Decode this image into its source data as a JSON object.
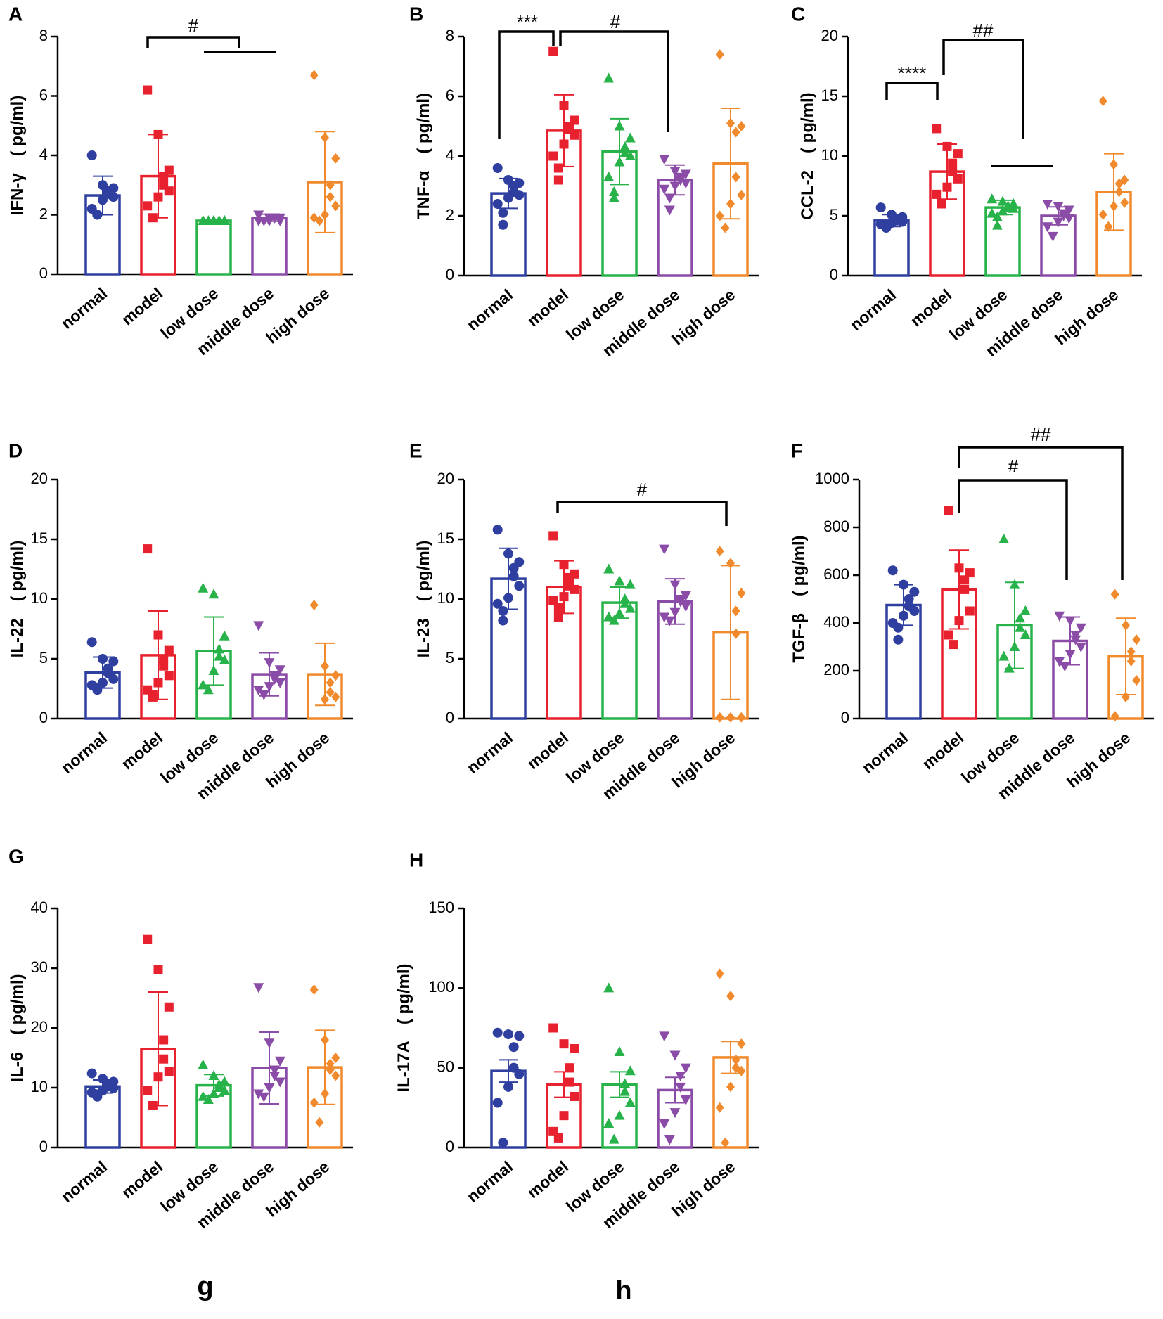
{
  "figure": {
    "captions": [
      "g",
      "h"
    ]
  },
  "colors": {
    "normal": "#2f3fa0",
    "model": "#e8212e",
    "low dose": "#27b34a",
    "middle dose": "#8a4ca6",
    "high dose": "#f08a2c"
  },
  "chart_data": [
    {
      "panel": "A",
      "type": "bar",
      "ylabel": "IFN-γ　( pg/ml)",
      "ylim": [
        0,
        8
      ],
      "yticks": [
        0,
        2,
        4,
        6,
        8
      ],
      "categories": [
        "normal",
        "model",
        "low dose",
        "middle dose",
        "high dose"
      ],
      "markers": [
        "circle",
        "square",
        "triangle-up",
        "triangle-down",
        "diamond"
      ],
      "means": [
        2.65,
        3.3,
        1.8,
        1.9,
        3.1
      ],
      "sd": [
        0.65,
        1.4,
        0.02,
        0.12,
        1.7
      ],
      "points": [
        [
          4.0,
          3.0,
          2.9,
          2.8,
          2.7,
          2.6,
          2.5,
          2.2,
          2.0,
          2.0
        ],
        [
          6.2,
          4.7,
          3.5,
          3.3,
          3.0,
          2.8,
          2.6,
          2.3,
          1.9
        ],
        [
          1.8,
          1.8,
          1.8,
          1.8,
          1.8,
          1.8,
          1.8,
          1.8,
          1.8
        ],
        [
          2.0,
          1.9,
          1.9,
          1.9,
          1.9,
          1.8,
          1.8,
          1.8,
          1.8
        ],
        [
          6.7,
          4.6,
          3.9,
          3.0,
          2.6,
          2.3,
          2.0,
          1.9,
          1.8
        ]
      ],
      "brackets": [
        {
          "label": "#"
        }
      ]
    },
    {
      "panel": "B",
      "type": "bar",
      "ylabel": "TNF-α　( pg/ml)",
      "ylim": [
        0,
        8
      ],
      "yticks": [
        0,
        2,
        4,
        6,
        8
      ],
      "categories": [
        "normal",
        "model",
        "low dose",
        "middle dose",
        "high dose"
      ],
      "markers": [
        "circle",
        "square",
        "triangle-up",
        "triangle-down",
        "diamond"
      ],
      "means": [
        2.75,
        4.85,
        4.15,
        3.2,
        3.75
      ],
      "sd": [
        0.5,
        1.2,
        1.1,
        0.5,
        1.85
      ],
      "points": [
        [
          3.6,
          3.2,
          3.1,
          3.0,
          2.8,
          2.7,
          2.6,
          2.4,
          2.1,
          1.7
        ],
        [
          7.5,
          5.7,
          5.2,
          5.0,
          4.9,
          4.7,
          4.4,
          4.0,
          3.6,
          3.2
        ],
        [
          6.6,
          5.0,
          4.6,
          4.3,
          4.1,
          4.0,
          3.8,
          3.3,
          2.8,
          2.6
        ],
        [
          3.9,
          3.5,
          3.4,
          3.3,
          3.2,
          3.1,
          3.0,
          2.9,
          2.6,
          2.2
        ],
        [
          7.4,
          5.1,
          5.0,
          4.8,
          3.3,
          2.7,
          2.4,
          2.0,
          1.6
        ]
      ],
      "brackets": [
        {
          "label": "***"
        },
        {
          "label": "#"
        }
      ]
    },
    {
      "panel": "C",
      "type": "bar",
      "ylabel": "CCL-2　( pg/ml)",
      "ylim": [
        0,
        20
      ],
      "yticks": [
        0,
        5,
        10,
        15,
        20
      ],
      "categories": [
        "normal",
        "model",
        "low dose",
        "middle dose",
        "high dose"
      ],
      "markers": [
        "circle",
        "square",
        "triangle-up",
        "triangle-down",
        "diamond"
      ],
      "means": [
        4.6,
        8.7,
        5.7,
        5.0,
        7.0
      ],
      "sd": [
        0.5,
        2.3,
        0.6,
        0.75,
        3.2
      ],
      "points": [
        [
          5.7,
          5.1,
          4.9,
          4.7,
          4.6,
          4.5,
          4.4,
          4.3,
          4.2,
          4.0
        ],
        [
          12.3,
          10.8,
          10.2,
          9.4,
          8.7,
          8.1,
          7.4,
          6.8,
          6.0
        ],
        [
          6.4,
          6.2,
          6.0,
          5.8,
          5.7,
          5.6,
          5.4,
          5.2,
          4.9,
          4.2
        ],
        [
          6.0,
          5.8,
          5.5,
          5.2,
          5.0,
          4.8,
          4.5,
          4.1,
          3.3
        ],
        [
          14.6,
          9.3,
          8.0,
          7.7,
          7.0,
          6.1,
          5.8,
          5.1,
          4.1
        ]
      ],
      "brackets": [
        {
          "label": "****"
        },
        {
          "label": "##"
        }
      ]
    },
    {
      "panel": "D",
      "type": "bar",
      "ylabel": "IL-22　( pg/ml)",
      "ylim": [
        0,
        20
      ],
      "yticks": [
        0,
        5,
        10,
        15,
        20
      ],
      "categories": [
        "normal",
        "model",
        "low dose",
        "middle dose",
        "high dose"
      ],
      "markers": [
        "circle",
        "square",
        "triangle-up",
        "triangle-down",
        "diamond"
      ],
      "means": [
        3.85,
        5.3,
        5.65,
        3.7,
        3.7
      ],
      "sd": [
        1.3,
        3.7,
        2.85,
        1.8,
        2.6
      ],
      "points": [
        [
          6.4,
          5.0,
          4.8,
          4.2,
          3.8,
          3.3,
          3.0,
          2.8,
          2.6,
          2.4
        ],
        [
          14.2,
          7.0,
          5.7,
          5.0,
          4.4,
          3.6,
          3.0,
          2.4,
          2.0,
          1.8
        ],
        [
          10.9,
          10.4,
          6.9,
          5.8,
          5.2,
          4.9,
          4.0,
          2.8,
          2.4
        ],
        [
          7.8,
          4.7,
          4.1,
          3.6,
          3.3,
          3.0,
          2.7,
          2.4,
          2.0
        ],
        [
          9.5,
          4.4,
          3.6,
          3.0,
          2.2,
          1.8,
          1.6
        ]
      ],
      "brackets": []
    },
    {
      "panel": "E",
      "type": "bar",
      "ylabel": "IL-23　( pg/ml)",
      "ylim": [
        0,
        20
      ],
      "yticks": [
        0,
        5,
        10,
        15,
        20
      ],
      "categories": [
        "normal",
        "model",
        "low dose",
        "middle dose",
        "high dose"
      ],
      "markers": [
        "circle",
        "square",
        "triangle-up",
        "triangle-down",
        "diamond"
      ],
      "means": [
        11.7,
        11.0,
        9.7,
        9.8,
        7.2
      ],
      "sd": [
        2.55,
        2.2,
        1.3,
        1.9,
        5.6
      ],
      "points": [
        [
          15.8,
          13.8,
          13.1,
          12.6,
          11.9,
          11.1,
          10.1,
          9.6,
          9.0,
          8.2
        ],
        [
          15.3,
          12.9,
          12.1,
          11.8,
          11.1,
          10.8,
          10.2,
          9.9,
          9.3,
          8.5
        ],
        [
          12.5,
          11.5,
          11.2,
          10.0,
          9.6,
          9.2,
          8.8,
          8.5,
          8.2
        ],
        [
          14.2,
          11.2,
          10.3,
          10.0,
          9.8,
          9.4,
          8.9,
          8.5,
          8.2
        ],
        [
          14.0,
          13.0,
          10.5,
          9.0,
          7.1,
          0.1,
          0.1,
          0.1
        ]
      ],
      "brackets": [
        {
          "label": "#"
        }
      ]
    },
    {
      "panel": "F",
      "type": "bar",
      "ylabel": "TGF-β　( pg/ml)",
      "ylim": [
        0,
        1000
      ],
      "yticks": [
        0,
        200,
        400,
        600,
        800,
        1000
      ],
      "categories": [
        "normal",
        "model",
        "low dose",
        "middle dose",
        "high dose"
      ],
      "markers": [
        "circle",
        "square",
        "triangle-up",
        "triangle-down",
        "diamond"
      ],
      "means": [
        475,
        540,
        390,
        325,
        260
      ],
      "sd": [
        85,
        165,
        180,
        100,
        160
      ],
      "points": [
        [
          620,
          560,
          530,
          500,
          470,
          450,
          430,
          400,
          380,
          330
        ],
        [
          870,
          630,
          610,
          580,
          540,
          450,
          410,
          350,
          310
        ],
        [
          750,
          560,
          450,
          420,
          380,
          350,
          300,
          260,
          210
        ],
        [
          430,
          410,
          380,
          350,
          330,
          300,
          270,
          240,
          220
        ],
        [
          520,
          390,
          330,
          280,
          240,
          160,
          90,
          10
        ]
      ],
      "brackets": [
        {
          "label": "#"
        },
        {
          "label": "##"
        }
      ]
    },
    {
      "panel": "G",
      "type": "bar",
      "ylabel": "IL-6　( pg/ml)",
      "ylim": [
        0,
        40
      ],
      "yticks": [
        0,
        10,
        20,
        30,
        40
      ],
      "categories": [
        "normal",
        "model",
        "low dose",
        "middle dose",
        "high dose"
      ],
      "markers": [
        "circle",
        "square",
        "triangle-up",
        "triangle-down",
        "diamond"
      ],
      "means": [
        10.2,
        16.5,
        10.4,
        13.3,
        13.4
      ],
      "sd": [
        1.1,
        9.5,
        1.8,
        6.0,
        6.2
      ],
      "points": [
        [
          12.4,
          11.5,
          11.0,
          10.5,
          10.2,
          9.9,
          9.5,
          9.2,
          8.9,
          8.5
        ],
        [
          34.8,
          29.8,
          23.5,
          18.0,
          14.8,
          12.7,
          11.8,
          9.5,
          7.0
        ],
        [
          13.8,
          12.0,
          11.0,
          10.5,
          10.0,
          9.5,
          9.0,
          8.5,
          8.0
        ],
        [
          26.8,
          17.5,
          14.5,
          13.0,
          12.0,
          11.0,
          10.0,
          9.0,
          8.5
        ],
        [
          26.4,
          18.0,
          15.0,
          14.0,
          13.0,
          12.0,
          9.0,
          7.5,
          4.2
        ]
      ],
      "brackets": []
    },
    {
      "panel": "H",
      "type": "bar",
      "ylabel": "IL-17A　( pg/ml)",
      "ylim": [
        0,
        150
      ],
      "yticks": [
        0,
        50,
        100,
        150
      ],
      "categories": [
        "normal",
        "model",
        "low dose",
        "middle dose",
        "high dose"
      ],
      "markers": [
        "circle",
        "square",
        "triangle-up",
        "triangle-down",
        "diamond"
      ],
      "means": [
        48,
        39.5,
        39.5,
        36,
        56.5
      ],
      "sd": [
        7,
        8,
        8,
        8,
        10
      ],
      "points": [
        [
          72,
          71,
          70,
          63,
          50,
          46,
          38,
          28,
          3
        ],
        [
          75,
          65,
          62,
          50,
          41,
          32,
          20,
          10,
          6
        ],
        [
          100,
          60,
          48,
          40,
          35,
          28,
          20,
          15,
          5
        ],
        [
          70,
          58,
          50,
          45,
          38,
          30,
          22,
          15,
          5
        ],
        [
          109,
          95,
          65,
          55,
          50,
          48,
          38,
          25,
          3
        ]
      ],
      "brackets": []
    }
  ]
}
